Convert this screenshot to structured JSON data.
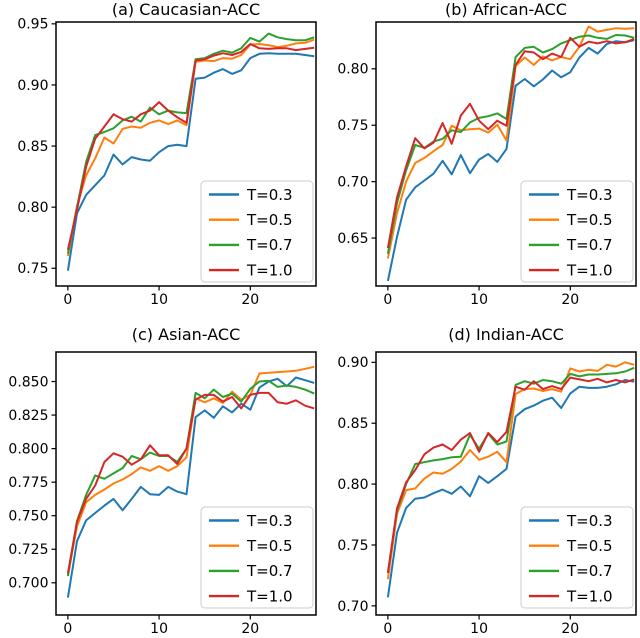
{
  "figure": {
    "background": "#ffffff",
    "x": [
      0,
      1,
      2,
      3,
      4,
      5,
      6,
      7,
      8,
      9,
      10,
      11,
      12,
      13,
      14,
      15,
      16,
      17,
      18,
      19,
      20,
      21,
      22,
      23,
      24,
      25,
      26,
      27
    ]
  },
  "palette": {
    "blue": "#1f77b4",
    "orange": "#ff7f0e",
    "green": "#2ca02c",
    "red": "#d62728"
  },
  "chart_data": [
    {
      "id": "a",
      "type": "line",
      "title": "(a) Caucasian-ACC",
      "xlim": [
        -1.3,
        27.2
      ],
      "ylim": [
        0.7355,
        0.9515
      ],
      "xticks": [
        0,
        10,
        20
      ],
      "yticks": [
        0.75,
        0.8,
        0.85,
        0.9,
        0.95
      ],
      "ytick_decimals": 2,
      "grid": false,
      "legend_position": "lower right",
      "series": [
        {
          "name": "T=0.3",
          "color": "#1f77b4",
          "values": [
            0.748,
            0.795,
            0.81,
            0.818,
            0.826,
            0.843,
            0.835,
            0.841,
            0.839,
            0.838,
            0.845,
            0.85,
            0.851,
            0.85,
            0.905,
            0.906,
            0.91,
            0.913,
            0.909,
            0.912,
            0.922,
            0.9255,
            0.926,
            0.9255,
            0.9255,
            0.9255,
            0.9245,
            0.9235
          ]
        },
        {
          "name": "T=0.5",
          "color": "#ff7f0e",
          "values": [
            0.76,
            0.801,
            0.826,
            0.84,
            0.857,
            0.852,
            0.864,
            0.866,
            0.865,
            0.869,
            0.871,
            0.868,
            0.871,
            0.867,
            0.919,
            0.92,
            0.9195,
            0.922,
            0.9215,
            0.9245,
            0.933,
            0.9335,
            0.9325,
            0.931,
            0.932,
            0.934,
            0.9345,
            0.937
          ]
        },
        {
          "name": "T=0.7",
          "color": "#2ca02c",
          "values": [
            0.762,
            0.8,
            0.837,
            0.859,
            0.8615,
            0.8645,
            0.871,
            0.874,
            0.87,
            0.8815,
            0.876,
            0.879,
            0.8775,
            0.877,
            0.921,
            0.922,
            0.9255,
            0.928,
            0.9265,
            0.93,
            0.9385,
            0.9355,
            0.942,
            0.939,
            0.9375,
            0.9365,
            0.9365,
            0.939
          ]
        },
        {
          "name": "T=1.0",
          "color": "#d62728",
          "values": [
            0.765,
            0.798,
            0.833,
            0.856,
            0.866,
            0.876,
            0.872,
            0.87,
            0.876,
            0.879,
            0.886,
            0.879,
            0.8735,
            0.869,
            0.92,
            0.921,
            0.924,
            0.926,
            0.9245,
            0.927,
            0.9335,
            0.93,
            0.9295,
            0.93,
            0.93,
            0.9285,
            0.9295,
            0.9305
          ]
        }
      ]
    },
    {
      "id": "b",
      "type": "line",
      "title": "(b) African-ACC",
      "xlim": [
        -1.3,
        27.2
      ],
      "ylim": [
        0.6075,
        0.8415
      ],
      "xticks": [
        0,
        10,
        20
      ],
      "yticks": [
        0.65,
        0.7,
        0.75,
        0.8
      ],
      "ytick_decimals": 2,
      "grid": false,
      "legend_position": "lower right",
      "series": [
        {
          "name": "T=0.3",
          "color": "#1f77b4",
          "values": [
            0.612,
            0.651,
            0.684,
            0.695,
            0.701,
            0.707,
            0.7185,
            0.7065,
            0.7235,
            0.7075,
            0.7195,
            0.7245,
            0.7175,
            0.729,
            0.785,
            0.791,
            0.7845,
            0.7905,
            0.7985,
            0.7925,
            0.797,
            0.81,
            0.8185,
            0.8135,
            0.822,
            0.8245,
            0.8235,
            0.8255
          ]
        },
        {
          "name": "T=0.5",
          "color": "#ff7f0e",
          "values": [
            0.632,
            0.672,
            0.7,
            0.7165,
            0.721,
            0.727,
            0.7325,
            0.7495,
            0.7455,
            0.7465,
            0.747,
            0.7435,
            0.7505,
            0.7365,
            0.8025,
            0.81,
            0.8035,
            0.811,
            0.8075,
            0.8105,
            0.8085,
            0.8195,
            0.8375,
            0.833,
            0.8345,
            0.836,
            0.8355,
            0.836
          ]
        },
        {
          "name": "T=0.7",
          "color": "#2ca02c",
          "values": [
            0.636,
            0.681,
            0.71,
            0.7325,
            0.73,
            0.7355,
            0.738,
            0.7455,
            0.744,
            0.7525,
            0.7565,
            0.758,
            0.7605,
            0.7555,
            0.8105,
            0.8185,
            0.8195,
            0.8145,
            0.8175,
            0.8225,
            0.8255,
            0.8285,
            0.8295,
            0.8275,
            0.8265,
            0.83,
            0.8295,
            0.8275
          ]
        },
        {
          "name": "T=1.0",
          "color": "#d62728",
          "values": [
            0.641,
            0.686,
            0.7135,
            0.7385,
            0.7295,
            0.7345,
            0.752,
            0.7335,
            0.7585,
            0.769,
            0.754,
            0.7465,
            0.754,
            0.7495,
            0.8035,
            0.8155,
            0.8145,
            0.8085,
            0.8135,
            0.8105,
            0.8275,
            0.8195,
            0.824,
            0.8225,
            0.8245,
            0.8225,
            0.8235,
            0.8265
          ]
        }
      ]
    },
    {
      "id": "c",
      "type": "line",
      "title": "(c) Asian-ACC",
      "xlim": [
        -1.3,
        27.2
      ],
      "ylim": [
        0.676,
        0.872
      ],
      "xticks": [
        0,
        10,
        20
      ],
      "yticks": [
        0.7,
        0.725,
        0.75,
        0.775,
        0.8,
        0.825,
        0.85
      ],
      "ytick_decimals": 3,
      "grid": false,
      "legend_position": "lower right",
      "series": [
        {
          "name": "T=0.3",
          "color": "#1f77b4",
          "values": [
            0.689,
            0.731,
            0.7465,
            0.752,
            0.7575,
            0.7625,
            0.754,
            0.7625,
            0.7715,
            0.766,
            0.7655,
            0.7715,
            0.768,
            0.766,
            0.8235,
            0.8285,
            0.823,
            0.8315,
            0.827,
            0.8335,
            0.829,
            0.8455,
            0.85,
            0.852,
            0.8465,
            0.853,
            0.851,
            0.849
          ]
        },
        {
          "name": "T=0.5",
          "color": "#ff7f0e",
          "values": [
            0.7055,
            0.742,
            0.76,
            0.7655,
            0.7695,
            0.774,
            0.777,
            0.781,
            0.786,
            0.7835,
            0.787,
            0.7835,
            0.787,
            0.7935,
            0.8375,
            0.8345,
            0.8375,
            0.834,
            0.8425,
            0.8365,
            0.84,
            0.856,
            0.8565,
            0.857,
            0.8575,
            0.858,
            0.8595,
            0.861
          ]
        },
        {
          "name": "T=0.7",
          "color": "#2ca02c",
          "values": [
            0.705,
            0.746,
            0.7655,
            0.78,
            0.7775,
            0.7815,
            0.7855,
            0.7945,
            0.792,
            0.797,
            0.7945,
            0.7945,
            0.79,
            0.8,
            0.8415,
            0.8375,
            0.844,
            0.8385,
            0.841,
            0.835,
            0.8445,
            0.85,
            0.8505,
            0.846,
            0.847,
            0.846,
            0.844,
            0.841
          ]
        },
        {
          "name": "T=1.0",
          "color": "#d62728",
          "values": [
            0.707,
            0.7455,
            0.7625,
            0.7725,
            0.79,
            0.7965,
            0.794,
            0.788,
            0.792,
            0.8025,
            0.795,
            0.795,
            0.7885,
            0.8,
            0.8365,
            0.84,
            0.84,
            0.835,
            0.8385,
            0.83,
            0.84,
            0.8415,
            0.8415,
            0.8345,
            0.8335,
            0.836,
            0.832,
            0.83
          ]
        }
      ]
    },
    {
      "id": "d",
      "type": "line",
      "title": "(d) Indian-ACC",
      "xlim": [
        -1.3,
        27.2
      ],
      "ylim": [
        0.6925,
        0.9085
      ],
      "xticks": [
        0,
        10,
        20
      ],
      "yticks": [
        0.7,
        0.75,
        0.8,
        0.85,
        0.9
      ],
      "ytick_decimals": 2,
      "grid": false,
      "legend_position": "lower right",
      "series": [
        {
          "name": "T=0.3",
          "color": "#1f77b4",
          "values": [
            0.707,
            0.76,
            0.7805,
            0.788,
            0.789,
            0.7925,
            0.7955,
            0.792,
            0.798,
            0.79,
            0.8065,
            0.801,
            0.8065,
            0.8125,
            0.8555,
            0.8615,
            0.8645,
            0.8685,
            0.871,
            0.8625,
            0.8745,
            0.88,
            0.879,
            0.879,
            0.88,
            0.882,
            0.8855,
            0.884
          ]
        },
        {
          "name": "T=0.5",
          "color": "#ff7f0e",
          "values": [
            0.722,
            0.7755,
            0.795,
            0.7965,
            0.8045,
            0.8095,
            0.8085,
            0.8125,
            0.8185,
            0.828,
            0.82,
            0.8225,
            0.8265,
            0.818,
            0.874,
            0.878,
            0.8785,
            0.8765,
            0.878,
            0.876,
            0.895,
            0.8925,
            0.894,
            0.893,
            0.898,
            0.8965,
            0.9,
            0.898
          ]
        },
        {
          "name": "T=0.7",
          "color": "#2ca02c",
          "values": [
            0.727,
            0.778,
            0.8,
            0.8165,
            0.818,
            0.8195,
            0.8205,
            0.822,
            0.8225,
            0.8405,
            0.829,
            0.8415,
            0.8325,
            0.835,
            0.8815,
            0.8845,
            0.8825,
            0.8855,
            0.8845,
            0.8825,
            0.8905,
            0.8885,
            0.89,
            0.89,
            0.8905,
            0.891,
            0.8925,
            0.8955
          ]
        },
        {
          "name": "T=1.0",
          "color": "#d62728",
          "values": [
            0.727,
            0.78,
            0.8015,
            0.8115,
            0.8245,
            0.83,
            0.8325,
            0.828,
            0.8365,
            0.842,
            0.8265,
            0.842,
            0.8345,
            0.843,
            0.88,
            0.8775,
            0.8845,
            0.878,
            0.8805,
            0.878,
            0.8875,
            0.886,
            0.8845,
            0.8865,
            0.8835,
            0.8855,
            0.8835,
            0.886
          ]
        }
      ]
    }
  ]
}
